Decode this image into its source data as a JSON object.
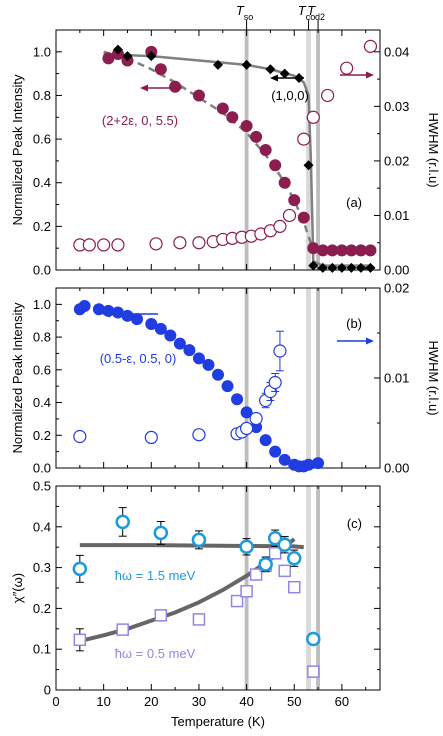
{
  "figure": {
    "x_axis_label": "Temperature  (K)",
    "x_ticks": [
      "0",
      "10",
      "20",
      "30",
      "40",
      "50",
      "60"
    ],
    "x_range": [
      0,
      68
    ],
    "transition_labels": [
      {
        "main": "T",
        "sub": "so",
        "T": 40
      },
      {
        "main": "T",
        "sub": "co",
        "T": 53
      },
      {
        "main": "T",
        "sub": "d2",
        "T": 55
      }
    ],
    "colors": {
      "black": "#000000",
      "maroon": "#8b1d4f",
      "blue": "#1f3de0",
      "cyan": "#1a9be0",
      "lavender": "#8f86e6",
      "line_gray": "#808080",
      "band_dark": "#bdbdbd",
      "band_light": "#d9d9d9"
    }
  },
  "chart_data": [
    {
      "panel": "(a)",
      "type": "scatter",
      "xlabel": "Temperature (K)",
      "ylabel": "Normalized Peak Intensity",
      "ylabel_right": "HWHM  (r.l.u)",
      "ylim": [
        0,
        1.1
      ],
      "yticks": [
        "0.0",
        "0.2",
        "0.4",
        "0.6",
        "0.8",
        "1.0"
      ],
      "ylim_right": [
        0,
        0.044
      ],
      "yticks_right": [
        "0.00",
        "0.01",
        "0.02",
        "0.03",
        "0.04"
      ],
      "annotations": [
        "(1,0,0)",
        "(2+2ε, 0, 5.5)",
        "(a)"
      ],
      "series": [
        {
          "name": "(1,0,0)",
          "marker": "diamond",
          "axis": "left",
          "x": [
            13,
            15,
            20,
            34,
            40,
            45,
            48,
            51,
            53,
            54,
            56,
            58,
            60,
            62,
            64,
            66
          ],
          "y": [
            1.01,
            0.98,
            0.98,
            0.94,
            0.94,
            0.92,
            0.9,
            0.88,
            0.48,
            0.02,
            0.01,
            0.01,
            0.01,
            0.01,
            0.01,
            0.01
          ]
        },
        {
          "name": "(2+2ε, 0, 5.5)",
          "marker": "circle-filled",
          "axis": "left",
          "x": [
            11,
            13,
            15,
            20,
            22,
            25,
            30,
            35,
            37,
            40,
            42,
            44,
            46,
            48,
            50,
            52,
            54,
            56,
            58,
            60,
            62,
            64,
            66
          ],
          "y": [
            0.97,
            0.99,
            0.96,
            1.0,
            0.92,
            0.84,
            0.8,
            0.74,
            0.7,
            0.66,
            0.61,
            0.55,
            0.48,
            0.4,
            0.32,
            0.24,
            0.1,
            0.09,
            0.09,
            0.09,
            0.09,
            0.09,
            0.09
          ]
        },
        {
          "name": "HWHM (2+2ε, 0, 5.5)",
          "marker": "circle-open",
          "axis": "right",
          "x": [
            5,
            7,
            10,
            13,
            21,
            26,
            30,
            33,
            35,
            37,
            39,
            41,
            43,
            45,
            47,
            49,
            52,
            54,
            57,
            61,
            66
          ],
          "y": [
            0.0046,
            0.0046,
            0.0046,
            0.0046,
            0.0048,
            0.005,
            0.005,
            0.0052,
            0.0056,
            0.0058,
            0.006,
            0.0062,
            0.0066,
            0.0072,
            0.008,
            0.01,
            0.024,
            0.028,
            0.032,
            0.037,
            0.041
          ]
        },
        {
          "name": "fit (1,0,0)",
          "line": "solid",
          "axis": "left",
          "x": [
            10,
            20,
            30,
            40,
            45,
            50,
            52,
            53,
            53.5,
            54,
            56,
            66
          ],
          "y": [
            0.99,
            0.98,
            0.96,
            0.94,
            0.92,
            0.89,
            0.86,
            0.8,
            0.5,
            0.04,
            0.02,
            0.02
          ]
        },
        {
          "name": "fit (2+2ε, 0, 5.5)",
          "line": "dashed",
          "axis": "left",
          "x": [
            10,
            15,
            20,
            25,
            30,
            35,
            40,
            45,
            48,
            50,
            52,
            54
          ],
          "y": [
            1.0,
            0.97,
            0.92,
            0.86,
            0.79,
            0.72,
            0.63,
            0.5,
            0.4,
            0.32,
            0.22,
            0.09
          ]
        }
      ]
    },
    {
      "panel": "(b)",
      "type": "scatter",
      "xlabel": "Temperature (K)",
      "ylabel": "Normalized Peak Intensity",
      "ylabel_right": "HWHM  (r.l.u)",
      "ylim": [
        0,
        1.1
      ],
      "yticks": [
        "0.0",
        "0.2",
        "0.4",
        "0.6",
        "0.8",
        "1.0"
      ],
      "ylim_right": [
        0,
        0.02
      ],
      "yticks_right": [
        "0.00",
        "0.01",
        "0.02"
      ],
      "annotations": [
        "(0.5-ε, 0.5, 0)",
        "(b)"
      ],
      "series": [
        {
          "name": "(0.5-ε, 0.5, 0)",
          "marker": "circle-filled",
          "axis": "left",
          "x": [
            5,
            6,
            9,
            11,
            13,
            15,
            17,
            20,
            22,
            24,
            26,
            28,
            30,
            32,
            34,
            36,
            38,
            40,
            42,
            44,
            46,
            48,
            50,
            51,
            52,
            53,
            55
          ],
          "y": [
            0.97,
            0.99,
            0.97,
            0.96,
            0.95,
            0.93,
            0.91,
            0.88,
            0.85,
            0.81,
            0.76,
            0.72,
            0.67,
            0.63,
            0.57,
            0.5,
            0.42,
            0.34,
            0.25,
            0.17,
            0.1,
            0.05,
            0.02,
            0.01,
            0.01,
            0.02,
            0.03
          ]
        },
        {
          "name": "HWHM (0.5-ε, 0.5, 0)",
          "marker": "circle-open",
          "axis": "right",
          "x": [
            5,
            20,
            30,
            38,
            39,
            40,
            42,
            44,
            45,
            46,
            47
          ],
          "y": [
            0.0035,
            0.0034,
            0.0037,
            0.0038,
            0.004,
            0.0044,
            0.0055,
            0.0075,
            0.0085,
            0.0095,
            0.013
          ],
          "err": [
            0,
            0,
            0,
            0,
            0,
            0,
            0.0005,
            0.0008,
            0.001,
            0.001,
            0.0022
          ]
        }
      ]
    },
    {
      "panel": "(c)",
      "type": "scatter",
      "xlabel": "Temperature (K)",
      "ylabel": "χ″(ω)",
      "ylim": [
        0,
        0.5
      ],
      "yticks": [
        "0",
        "0.1",
        "0.2",
        "0.3",
        "0.4",
        "0.5"
      ],
      "annotations": [
        "ħω = 1.5 meV",
        "ħω = 0.5 meV",
        "(c)"
      ],
      "series": [
        {
          "name": "ħω = 1.5 meV",
          "marker": "circle-open-thick",
          "axis": "left",
          "x": [
            5,
            14,
            22,
            30,
            40,
            44,
            46,
            48,
            50,
            54
          ],
          "y": [
            0.297,
            0.412,
            0.385,
            0.368,
            0.351,
            0.308,
            0.372,
            0.356,
            0.323,
            0.125
          ],
          "err": [
            0.033,
            0.035,
            0.028,
            0.022,
            0.02,
            0.018,
            0.02,
            0.02,
            0.02,
            0.008
          ]
        },
        {
          "name": "ħω = 0.5 meV",
          "marker": "square-open",
          "axis": "left",
          "x": [
            5,
            14,
            22,
            30,
            38,
            40,
            42,
            44,
            46,
            48,
            50,
            54
          ],
          "y": [
            0.123,
            0.148,
            0.183,
            0.173,
            0.218,
            0.242,
            0.283,
            0.305,
            0.335,
            0.292,
            0.252,
            0.045
          ],
          "err": [
            0.027,
            0.012,
            0,
            0,
            0,
            0,
            0,
            0,
            0,
            0,
            0,
            0
          ]
        },
        {
          "name": "fit 1.5 meV",
          "line": "solid",
          "axis": "left",
          "x": [
            5,
            20,
            40,
            50,
            52
          ],
          "y": [
            0.355,
            0.355,
            0.353,
            0.352,
            0.35
          ]
        },
        {
          "name": "fit 0.5 meV",
          "line": "solid",
          "axis": "left",
          "x": [
            5,
            10,
            15,
            20,
            25,
            30,
            35,
            40,
            45,
            50
          ],
          "y": [
            0.12,
            0.134,
            0.15,
            0.17,
            0.19,
            0.215,
            0.245,
            0.28,
            0.32,
            0.37
          ]
        }
      ]
    }
  ]
}
